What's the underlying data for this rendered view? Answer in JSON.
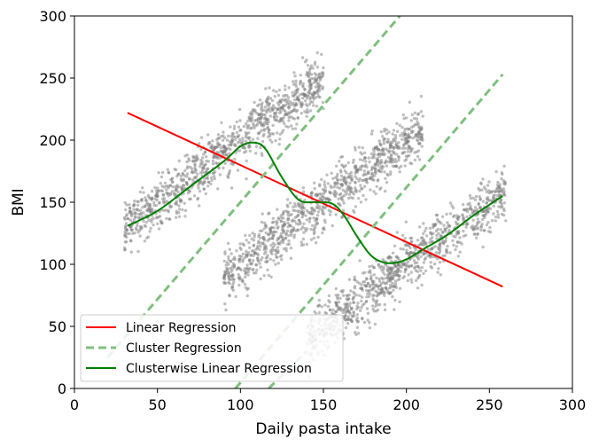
{
  "chart_data": {
    "type": "scatter",
    "title": "",
    "xlabel": "Daily pasta intake",
    "ylabel": "BMI",
    "xlim": [
      0,
      300
    ],
    "ylim": [
      0,
      300
    ],
    "xticks": [
      "0",
      "50",
      "100",
      "150",
      "200",
      "250",
      "300"
    ],
    "yticks": [
      "0",
      "50",
      "100",
      "150",
      "200",
      "250",
      "300"
    ],
    "grid": false,
    "legend_position": "bottom-left",
    "scatter_clusters": [
      {
        "center": [
          100,
          200
        ],
        "x_spread": [
          30,
          150
        ],
        "count": 1000
      },
      {
        "center": [
          150,
          150
        ],
        "x_spread": [
          90,
          210
        ],
        "count": 1000
      },
      {
        "center": [
          200,
          100
        ],
        "x_spread": [
          140,
          260
        ],
        "count": 1000
      }
    ],
    "scatter_color": "#808080",
    "series": [
      {
        "name": "Linear Regression",
        "style": "solid",
        "color": "#ff0000",
        "x": [
          32,
          258
        ],
        "y": [
          222,
          82
        ]
      },
      {
        "name": "Cluster Regression",
        "style": "dashed",
        "color": "#7fbf7f",
        "segments": [
          {
            "x": [
              20,
              196
            ],
            "y": [
              25,
              300
            ]
          },
          {
            "x": [
              97,
              258
            ],
            "y": [
              0,
              253
            ]
          },
          {
            "x": [
              117,
              140
            ],
            "y": [
              0,
              30
            ]
          }
        ]
      },
      {
        "name": "Clusterwise Linear Regression",
        "style": "solid",
        "color": "#008000",
        "x": [
          32,
          50,
          70,
          90,
          100,
          108,
          115,
          125,
          135,
          145,
          155,
          162,
          170,
          178,
          185,
          192,
          200,
          210,
          225,
          240,
          258
        ],
        "y": [
          131,
          143,
          163,
          183,
          195,
          198,
          193,
          170,
          152,
          150,
          149,
          140,
          123,
          108,
          102,
          101,
          104,
          112,
          124,
          139,
          155
        ]
      }
    ]
  }
}
